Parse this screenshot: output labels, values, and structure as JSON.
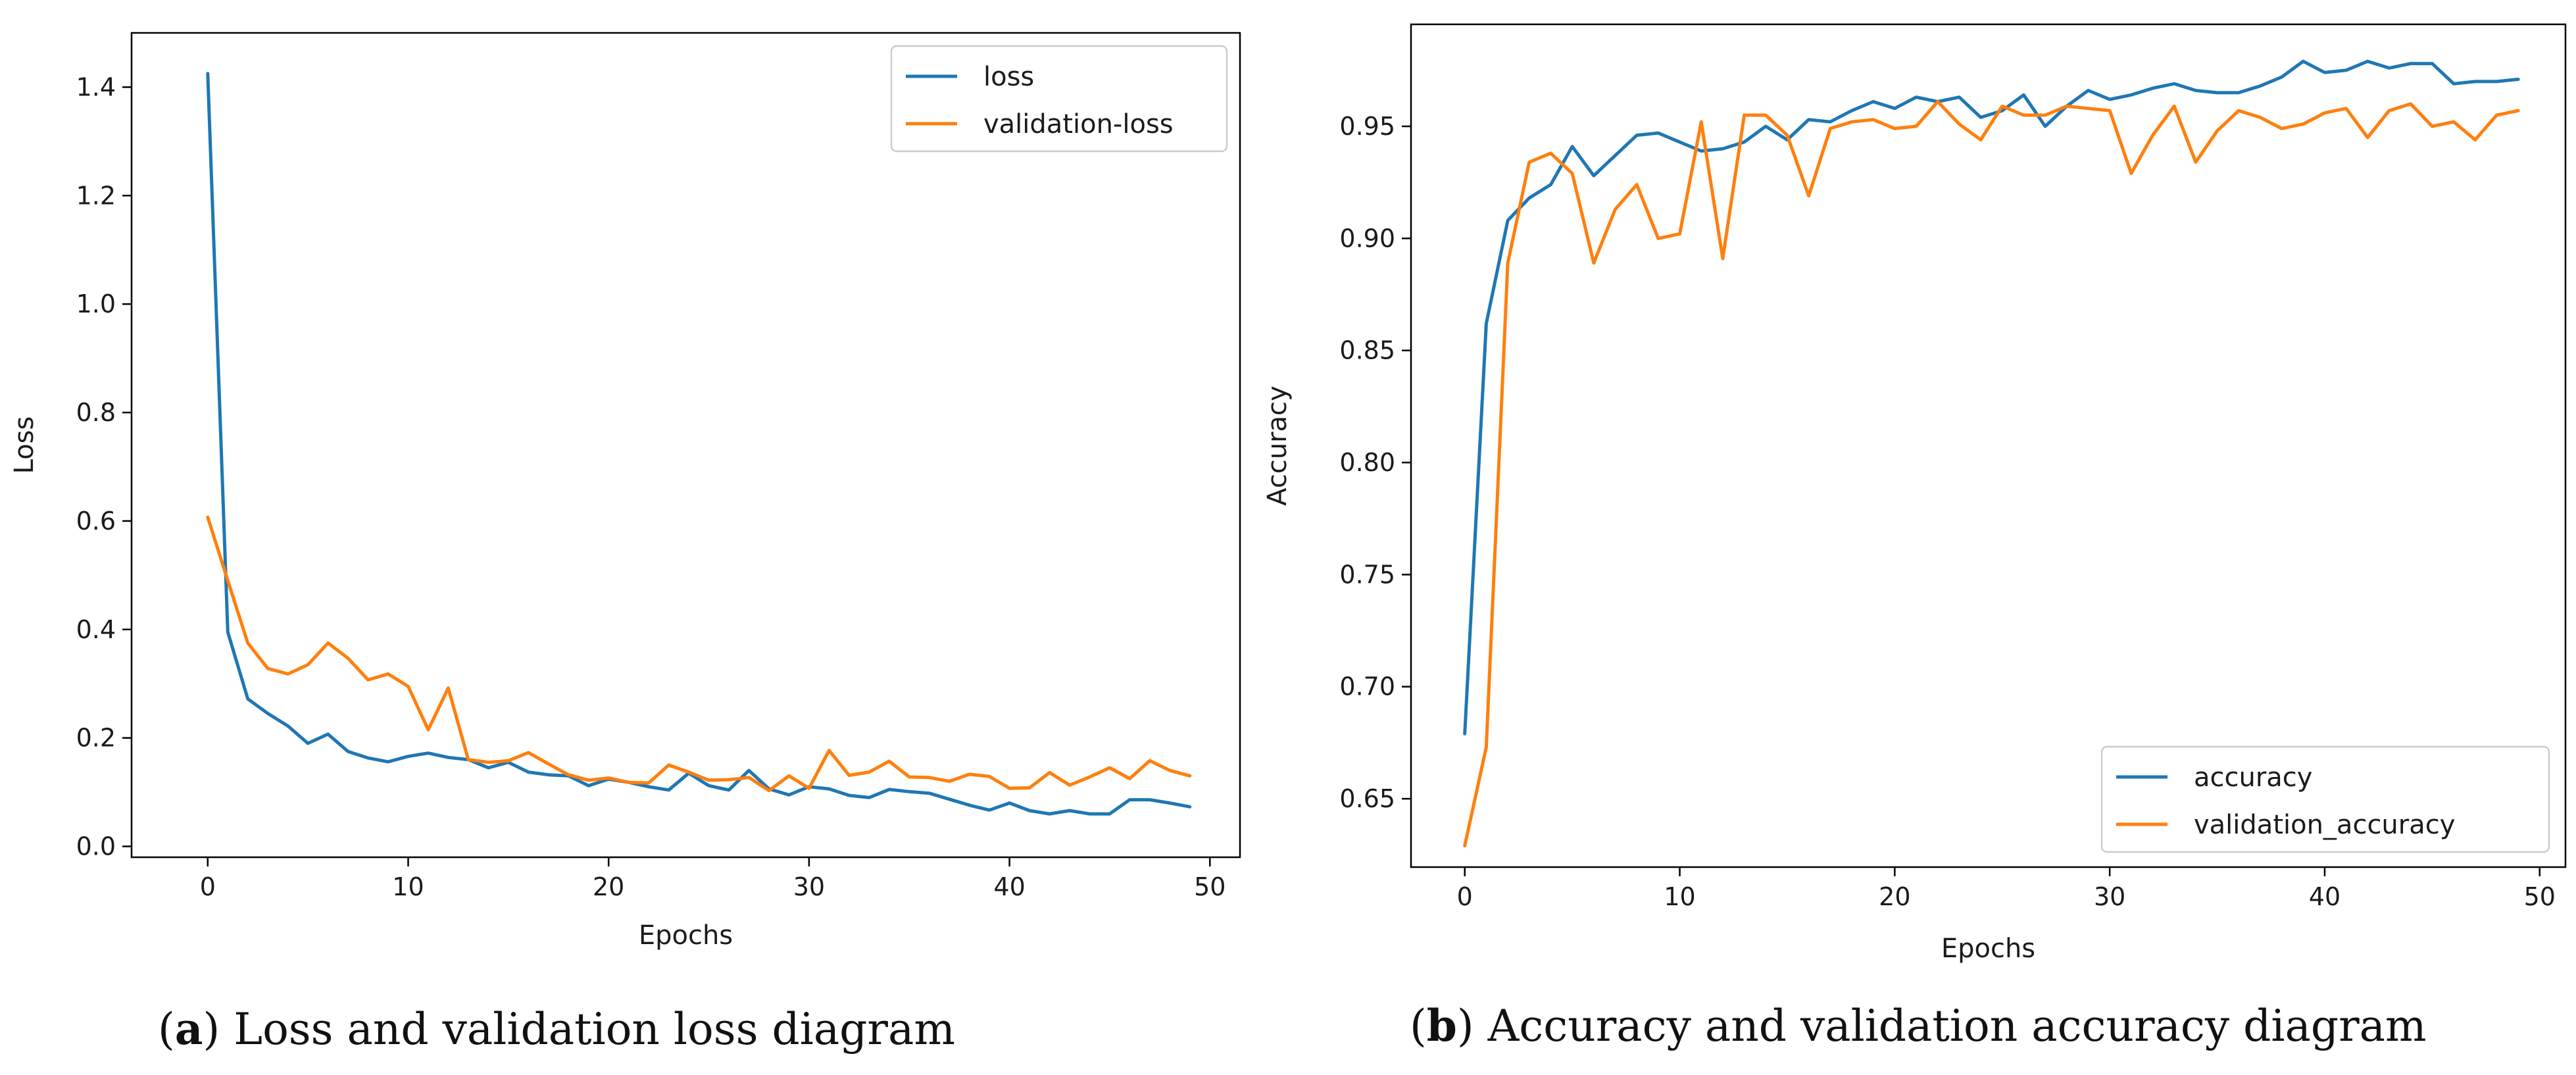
{
  "chart_data": [
    {
      "type": "line",
      "xlabel": "Epochs",
      "ylabel": "Loss",
      "xlim": [
        -3.8,
        51.5
      ],
      "ylim": [
        -0.02,
        1.5
      ],
      "xticks": [
        0,
        10,
        20,
        30,
        40,
        50
      ],
      "xtick_labels": [
        "0",
        "10",
        "20",
        "30",
        "40",
        "50"
      ],
      "yticks": [
        0.0,
        0.2,
        0.4,
        0.6,
        0.8,
        1.0,
        1.2,
        1.4
      ],
      "ytick_labels": [
        "0.0",
        "0.2",
        "0.4",
        "0.6",
        "0.8",
        "1.0",
        "1.2",
        "1.4"
      ],
      "legend_position": "upper-right",
      "series": [
        {
          "name": "loss",
          "color": "#1f77b4",
          "values": [
            1.425,
            0.395,
            0.272,
            0.245,
            0.222,
            0.19,
            0.207,
            0.175,
            0.163,
            0.156,
            0.166,
            0.172,
            0.164,
            0.16,
            0.145,
            0.155,
            0.137,
            0.132,
            0.13,
            0.112,
            0.124,
            0.118,
            0.11,
            0.104,
            0.135,
            0.112,
            0.104,
            0.14,
            0.106,
            0.095,
            0.11,
            0.106,
            0.094,
            0.09,
            0.105,
            0.101,
            0.098,
            0.087,
            0.076,
            0.067,
            0.08,
            0.066,
            0.06,
            0.066,
            0.06,
            0.06,
            0.086,
            0.086,
            0.08,
            0.073
          ]
        },
        {
          "name": "validation-loss",
          "color": "#ff7f0e",
          "values": [
            0.607,
            0.49,
            0.375,
            0.328,
            0.318,
            0.335,
            0.375,
            0.347,
            0.307,
            0.318,
            0.295,
            0.215,
            0.292,
            0.16,
            0.155,
            0.158,
            0.173,
            0.152,
            0.132,
            0.122,
            0.126,
            0.118,
            0.117,
            0.15,
            0.137,
            0.122,
            0.123,
            0.127,
            0.103,
            0.13,
            0.107,
            0.177,
            0.131,
            0.137,
            0.157,
            0.128,
            0.127,
            0.12,
            0.133,
            0.129,
            0.107,
            0.108,
            0.136,
            0.113,
            0.128,
            0.145,
            0.125,
            0.158,
            0.14,
            0.13
          ]
        }
      ],
      "caption_label": "a",
      "caption_text": " Loss and validation loss diagram"
    },
    {
      "type": "line",
      "xlabel": "Epochs",
      "ylabel": "Accuracy",
      "xlim": [
        -2.5,
        51.2
      ],
      "ylim": [
        0.6195,
        0.9955
      ],
      "xticks": [
        0,
        10,
        20,
        30,
        40,
        50
      ],
      "xtick_labels": [
        "0",
        "10",
        "20",
        "30",
        "40",
        "50"
      ],
      "yticks": [
        0.65,
        0.7,
        0.75,
        0.8,
        0.85,
        0.9,
        0.95
      ],
      "ytick_labels": [
        "0.65",
        "0.70",
        "0.75",
        "0.80",
        "0.85",
        "0.90",
        "0.95"
      ],
      "legend_position": "lower-right",
      "series": [
        {
          "name": "accuracy",
          "color": "#1f77b4",
          "values": [
            0.679,
            0.862,
            0.908,
            0.918,
            0.924,
            0.941,
            0.928,
            0.937,
            0.946,
            0.947,
            0.943,
            0.939,
            0.94,
            0.943,
            0.95,
            0.944,
            0.953,
            0.952,
            0.957,
            0.961,
            0.958,
            0.963,
            0.961,
            0.963,
            0.954,
            0.957,
            0.964,
            0.95,
            0.959,
            0.966,
            0.962,
            0.964,
            0.967,
            0.969,
            0.966,
            0.965,
            0.965,
            0.968,
            0.972,
            0.979,
            0.974,
            0.975,
            0.979,
            0.976,
            0.978,
            0.978,
            0.969,
            0.97,
            0.97,
            0.971
          ]
        },
        {
          "name": "validation_accuracy",
          "color": "#ff7f0e",
          "values": [
            0.629,
            0.673,
            0.889,
            0.934,
            0.938,
            0.929,
            0.889,
            0.913,
            0.924,
            0.9,
            0.902,
            0.952,
            0.891,
            0.955,
            0.955,
            0.946,
            0.919,
            0.949,
            0.952,
            0.953,
            0.949,
            0.95,
            0.961,
            0.951,
            0.944,
            0.959,
            0.955,
            0.955,
            0.959,
            0.958,
            0.957,
            0.929,
            0.946,
            0.959,
            0.934,
            0.948,
            0.957,
            0.954,
            0.949,
            0.951,
            0.956,
            0.958,
            0.945,
            0.957,
            0.96,
            0.95,
            0.952,
            0.944,
            0.955,
            0.957
          ]
        }
      ],
      "caption_label": "b",
      "caption_text": " Accuracy and validation accuracy diagram"
    }
  ]
}
